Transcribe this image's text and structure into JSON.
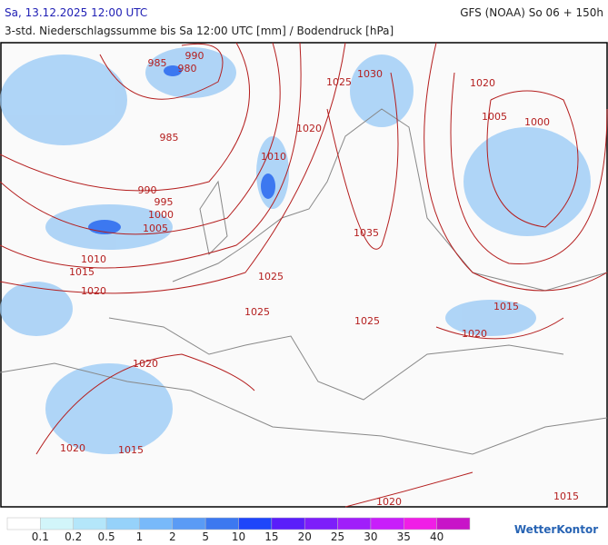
{
  "header": {
    "left": "Sa, 13.12.2025 12:00 UTC",
    "right": "GFS (NOAA) So 06 + 150h",
    "subtitle": "3-std. Niederschlagssumme bis Sa 12:00 UTC [mm] / Bodendruck [hPa]"
  },
  "isobar_labels": [
    "985",
    "990",
    "980",
    "985",
    "990",
    "995",
    "1000",
    "1005",
    "1010",
    "1015",
    "1020",
    "1010",
    "1020",
    "1025",
    "1030",
    "1020",
    "1005",
    "1000",
    "1035",
    "1025",
    "1025",
    "1025",
    "1015",
    "1020",
    "1020",
    "1020",
    "1015",
    "1020",
    "1015"
  ],
  "legend": {
    "colors": [
      "#ffffff",
      "#d2f5fa",
      "#b4e6fa",
      "#96d2fa",
      "#78b9fa",
      "#5a9bf5",
      "#3c78f0",
      "#1e46fa",
      "#5a1efa",
      "#7d1efa",
      "#a01efa",
      "#c81efa",
      "#f01ee6",
      "#c814c8"
    ],
    "labels": [
      "0.1",
      "0.2",
      "0.5",
      "1",
      "2",
      "5",
      "10",
      "15",
      "20",
      "25",
      "30",
      "35",
      "40"
    ]
  },
  "brand": "WetterKontor"
}
